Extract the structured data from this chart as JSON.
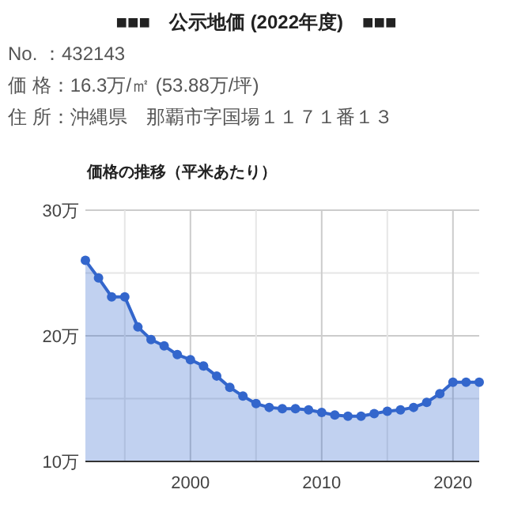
{
  "chart_data": {
    "type": "area",
    "title": "■■■　公示地価 (2022年度)　■■■",
    "subtitle": "価格の推移（平米あたり）",
    "annotations": [
      "No. ：432143",
      "価 格：16.3万/㎡ (53.88万/坪)",
      "住 所：沖縄県　那覇市字国場１１７１番１３"
    ],
    "x": [
      1992,
      1993,
      1994,
      1995,
      1996,
      1997,
      1998,
      1999,
      2000,
      2001,
      2002,
      2003,
      2004,
      2005,
      2006,
      2007,
      2008,
      2009,
      2010,
      2011,
      2012,
      2013,
      2014,
      2015,
      2016,
      2017,
      2018,
      2019,
      2020,
      2021,
      2022
    ],
    "series": [
      {
        "color": "#3366cc",
        "values": [
          26.0,
          24.6,
          23.1,
          23.1,
          20.7,
          19.7,
          19.2,
          18.5,
          18.1,
          17.6,
          16.8,
          15.9,
          15.2,
          14.6,
          14.3,
          14.2,
          14.2,
          14.1,
          13.9,
          13.7,
          13.6,
          13.6,
          13.8,
          14.0,
          14.1,
          14.3,
          14.7,
          15.4,
          16.3,
          16.3,
          16.3
        ]
      }
    ],
    "xlim": [
      1992,
      2022
    ],
    "xticks": [
      {
        "value": 1995,
        "label": null
      },
      2000,
      {
        "value": 2005,
        "label": null
      },
      2010,
      {
        "value": 2015,
        "label": null
      },
      2020
    ],
    "ylim": [
      10,
      30
    ],
    "yticks": [
      {
        "value": 10,
        "label": "10万"
      },
      {
        "value": 15,
        "label": null
      },
      {
        "value": 20,
        "label": "20万"
      },
      {
        "value": 25,
        "label": null
      },
      {
        "value": 30,
        "label": "30万"
      }
    ],
    "grid": true,
    "marker": "circle",
    "line_style": "solid"
  }
}
